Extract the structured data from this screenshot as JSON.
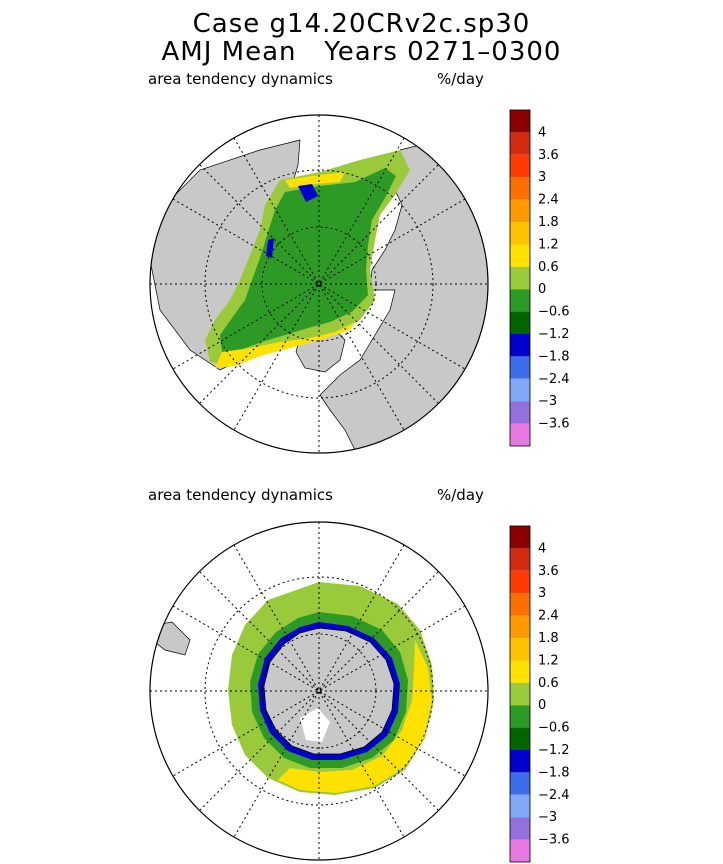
{
  "title": {
    "line1": "Case g14.20CRv2c.sp30",
    "line2": "AMJ Mean   Years 0271–0300"
  },
  "panels": [
    {
      "id": "north",
      "label": "area tendency dynamics",
      "units": "%/day"
    },
    {
      "id": "south",
      "label": "area tendency dynamics",
      "units": "%/day"
    }
  ],
  "colorbar": {
    "tick_labels": [
      "4",
      "3.6",
      "3",
      "2.4",
      "1.8",
      "1.2",
      "0.6",
      "0",
      "−0.6",
      "−1.2",
      "−1.8",
      "−2.4",
      "−3",
      "−3.6"
    ],
    "colors_top_to_bottom": [
      "#8b0000",
      "#d42a0f",
      "#ff3a00",
      "#ff6f00",
      "#ff9a00",
      "#ffc200",
      "#ffe100",
      "#9aca3c",
      "#2e9a26",
      "#006400",
      "#0000cd",
      "#3b6ee8",
      "#7fa8f5",
      "#9370db",
      "#e57ae0"
    ]
  },
  "map_colors": {
    "land": "#c8c8c8",
    "ocean": "#ffffff",
    "ice_neutral": "#2e9a26",
    "ice_light": "#9aca3c",
    "edge_positive": "#ffe100",
    "edge_negative": "#0000cd"
  }
}
